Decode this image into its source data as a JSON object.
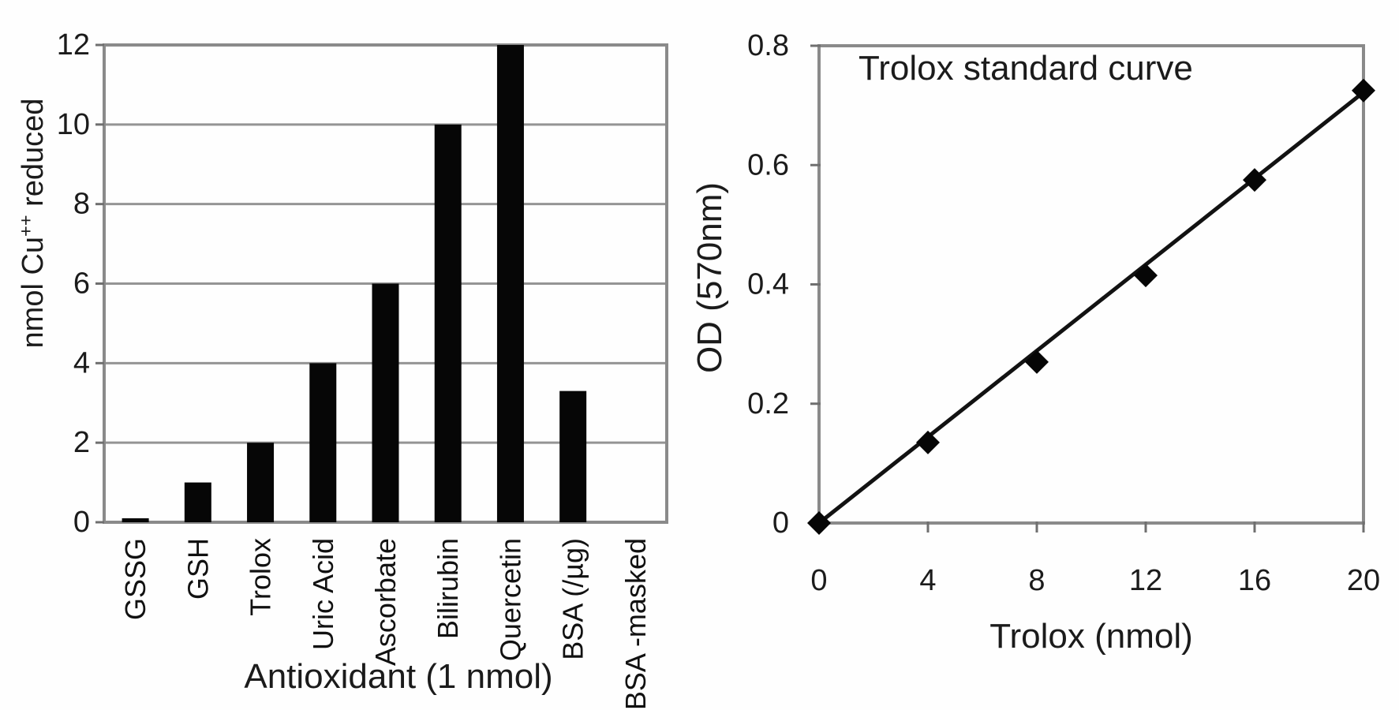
{
  "figure": {
    "background": "#fefefe",
    "axis_color": "#8a8a8a",
    "gridline_color": "#949494",
    "tick_color": "#6f6f6f",
    "bar_color": "#060606",
    "marker_color": "#060606",
    "line_color": "#121212",
    "text_color": "#1b1b1b"
  },
  "chart_data": [
    {
      "type": "bar",
      "title": "",
      "xlabel": "Antioxidant (1 nmol)",
      "ylabel": "nmol Cu++ reduced",
      "ylabel_parts": {
        "prefix": "nmol Cu",
        "sup": "++",
        "suffix": " reduced"
      },
      "categories": [
        "GSSG",
        "GSH",
        "Trolox",
        "Uric Acid",
        "Ascorbate",
        "Bilirubin",
        "Quercetin",
        "BSA (/µg)",
        "BSA -masked"
      ],
      "values": [
        0.1,
        1,
        2,
        4,
        6,
        10,
        12,
        3.3,
        0
      ],
      "ylim": [
        0,
        12
      ],
      "yticks": [
        0,
        2,
        4,
        6,
        8,
        10,
        12
      ],
      "grid": true,
      "legend": "none"
    },
    {
      "type": "scatter",
      "title": "Trolox standard curve",
      "xlabel": "Trolox (nmol)",
      "ylabel": "OD (570nm)",
      "x": [
        0,
        4,
        8,
        12,
        16,
        20
      ],
      "y": [
        0,
        0.135,
        0.27,
        0.415,
        0.575,
        0.725
      ],
      "xlim": [
        0,
        20
      ],
      "ylim": [
        0,
        0.8
      ],
      "xticks": [
        0,
        4,
        8,
        12,
        16,
        20
      ],
      "yticks": [
        0,
        0.2,
        0.4,
        0.6,
        0.8
      ],
      "marker": "diamond",
      "trendline": {
        "x1": 0,
        "y1": 0,
        "x2": 20,
        "y2": 0.722
      },
      "grid": false,
      "legend": "none"
    }
  ]
}
